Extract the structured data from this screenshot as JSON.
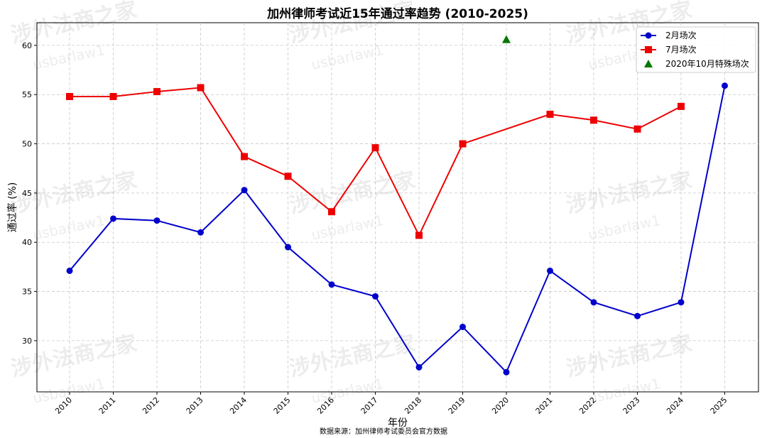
{
  "chart_data": {
    "type": "line",
    "title": "加州律师考试近15年通过率趋势 (2010-2025)",
    "xlabel": "年份",
    "ylabel": "通过率 (%)",
    "categories": [
      "2010",
      "2011",
      "2012",
      "2013",
      "2014",
      "2015",
      "2016",
      "2017",
      "2018",
      "2019",
      "2020",
      "2021",
      "2022",
      "2023",
      "2024",
      "2025"
    ],
    "ylim": [
      24.8,
      62.3
    ],
    "yticks": [
      30,
      35,
      40,
      45,
      50,
      55,
      60
    ],
    "grid": true,
    "legend_position": "top-right",
    "series": [
      {
        "name": "2月场次",
        "color": "#0000cc",
        "marker": "circle",
        "values": [
          37.1,
          42.4,
          42.2,
          41.0,
          45.3,
          39.5,
          35.7,
          34.5,
          27.3,
          31.4,
          26.8,
          37.1,
          33.9,
          32.5,
          33.9,
          55.9
        ]
      },
      {
        "name": "7月场次",
        "color": "#ee0000",
        "marker": "square",
        "values": [
          54.8,
          54.8,
          55.3,
          55.7,
          48.7,
          46.7,
          43.1,
          49.6,
          40.7,
          50.0,
          null,
          53.0,
          52.4,
          51.5,
          53.8,
          null
        ]
      },
      {
        "name": "2020年10月特殊场次",
        "color": "#007700",
        "marker": "triangle",
        "values": [
          null,
          null,
          null,
          null,
          null,
          null,
          null,
          null,
          null,
          null,
          60.6,
          null,
          null,
          null,
          null,
          null
        ]
      }
    ]
  },
  "source_note": "数据来源：加州律师考试委员会官方数据",
  "watermark": {
    "cn": "涉外法商之家",
    "en": "usbarlaw1"
  }
}
